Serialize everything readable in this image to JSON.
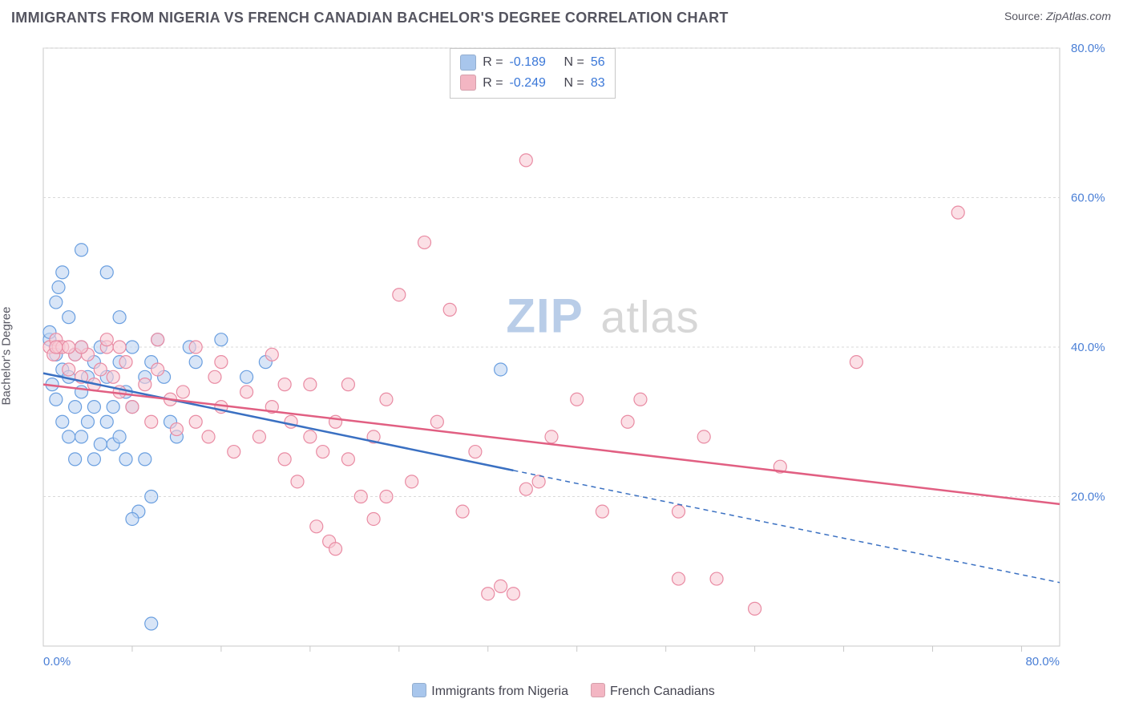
{
  "title": "IMMIGRANTS FROM NIGERIA VS FRENCH CANADIAN BACHELOR'S DEGREE CORRELATION CHART",
  "source_label": "Source: ",
  "source_name": "ZipAtlas.com",
  "watermark_text": "ZIPatlas",
  "ylabel": "Bachelor's Degree",
  "xlim": [
    0,
    80
  ],
  "ylim": [
    0,
    80
  ],
  "ytick_values": [
    20,
    40,
    60,
    80
  ],
  "ytick_labels": [
    "20.0%",
    "40.0%",
    "60.0%",
    "80.0%"
  ],
  "xtick_values": [
    0,
    80
  ],
  "xtick_labels": [
    "0.0%",
    "80.0%"
  ],
  "xtick_minor": [
    7,
    14,
    21,
    28,
    35,
    42,
    49,
    56,
    63,
    70,
    77
  ],
  "grid_color": "#d9d9d9",
  "axis_color": "#c8c8c8",
  "background_color": "#ffffff",
  "stats": [
    {
      "swatch": "#a8c6ec",
      "r_label": "R =",
      "r_value": "-0.189",
      "n_label": "N =",
      "n_value": "56"
    },
    {
      "swatch": "#f3b6c3",
      "r_label": "R =",
      "r_value": "-0.249",
      "n_label": "N =",
      "n_value": "83"
    }
  ],
  "bottom_legend": [
    {
      "swatch": "#a8c6ec",
      "label": "Immigrants from Nigeria"
    },
    {
      "swatch": "#f3b6c3",
      "label": "French Canadians"
    }
  ],
  "series": [
    {
      "name": "Immigrants from Nigeria",
      "fill": "#bed4f1",
      "stroke": "#6a9fe0",
      "marker_radius": 8,
      "points": [
        [
          0.5,
          41
        ],
        [
          0.5,
          42
        ],
        [
          0.7,
          35
        ],
        [
          1,
          46
        ],
        [
          1,
          39
        ],
        [
          1,
          33
        ],
        [
          1.2,
          48
        ],
        [
          1.5,
          50
        ],
        [
          1.5,
          37
        ],
        [
          1.5,
          30
        ],
        [
          2,
          44
        ],
        [
          2,
          36
        ],
        [
          2,
          28
        ],
        [
          2.5,
          39
        ],
        [
          2.5,
          32
        ],
        [
          2.5,
          25
        ],
        [
          3,
          53
        ],
        [
          3,
          40
        ],
        [
          3,
          34
        ],
        [
          3,
          28
        ],
        [
          3.5,
          36
        ],
        [
          3.5,
          30
        ],
        [
          4,
          38
        ],
        [
          4,
          32
        ],
        [
          4,
          25
        ],
        [
          4.5,
          40
        ],
        [
          4.5,
          27
        ],
        [
          5,
          50
        ],
        [
          5,
          36
        ],
        [
          5,
          30
        ],
        [
          5.5,
          32
        ],
        [
          5.5,
          27
        ],
        [
          6,
          44
        ],
        [
          6,
          38
        ],
        [
          6,
          28
        ],
        [
          6.5,
          34
        ],
        [
          6.5,
          25
        ],
        [
          7,
          40
        ],
        [
          7,
          32
        ],
        [
          7.5,
          18
        ],
        [
          8,
          36
        ],
        [
          8,
          25
        ],
        [
          8.5,
          38
        ],
        [
          8.5,
          20
        ],
        [
          9,
          41
        ],
        [
          9.5,
          36
        ],
        [
          10,
          30
        ],
        [
          10.5,
          28
        ],
        [
          11.5,
          40
        ],
        [
          12,
          38
        ],
        [
          14,
          41
        ],
        [
          16,
          36
        ],
        [
          17.5,
          38
        ],
        [
          36,
          37
        ],
        [
          8.5,
          3
        ],
        [
          7,
          17
        ]
      ],
      "trend_solid": {
        "x1": 0,
        "y1": 36.5,
        "x2": 37,
        "y2": 23.5
      },
      "trend_dashed": {
        "x1": 37,
        "y1": 23.5,
        "x2": 80,
        "y2": 8.5
      },
      "trend_color": "#3a70c2",
      "trend_width": 2.5
    },
    {
      "name": "French Canadians",
      "fill": "#f8ccd5",
      "stroke": "#e98ba3",
      "marker_radius": 8,
      "points": [
        [
          0.5,
          40
        ],
        [
          0.8,
          39
        ],
        [
          1,
          41
        ],
        [
          1.2,
          40
        ],
        [
          1.5,
          40
        ],
        [
          2,
          37
        ],
        [
          2.5,
          39
        ],
        [
          3,
          36
        ],
        [
          3.5,
          39
        ],
        [
          4,
          35
        ],
        [
          4.5,
          37
        ],
        [
          5,
          40
        ],
        [
          5.5,
          36
        ],
        [
          6,
          34
        ],
        [
          6.5,
          38
        ],
        [
          7,
          32
        ],
        [
          8,
          35
        ],
        [
          8.5,
          30
        ],
        [
          9,
          37
        ],
        [
          10,
          33
        ],
        [
          10.5,
          29
        ],
        [
          11,
          34
        ],
        [
          12,
          30
        ],
        [
          13,
          28
        ],
        [
          13.5,
          36
        ],
        [
          14,
          32
        ],
        [
          15,
          26
        ],
        [
          16,
          34
        ],
        [
          17,
          28
        ],
        [
          18,
          32
        ],
        [
          19,
          25
        ],
        [
          19.5,
          30
        ],
        [
          20,
          22
        ],
        [
          21,
          28
        ],
        [
          21.5,
          16
        ],
        [
          22,
          26
        ],
        [
          22.5,
          14
        ],
        [
          23,
          30
        ],
        [
          24,
          25
        ],
        [
          25,
          20
        ],
        [
          26,
          28
        ],
        [
          27,
          33
        ],
        [
          28,
          47
        ],
        [
          29,
          22
        ],
        [
          30,
          54
        ],
        [
          31,
          30
        ],
        [
          32,
          45
        ],
        [
          33,
          18
        ],
        [
          34,
          26
        ],
        [
          35,
          7
        ],
        [
          36,
          8
        ],
        [
          37,
          7
        ],
        [
          38,
          65
        ],
        [
          38,
          21
        ],
        [
          39,
          22
        ],
        [
          40,
          28
        ],
        [
          42,
          33
        ],
        [
          44,
          18
        ],
        [
          46,
          30
        ],
        [
          47,
          33
        ],
        [
          50,
          9
        ],
        [
          50,
          18
        ],
        [
          52,
          28
        ],
        [
          53,
          9
        ],
        [
          56,
          5
        ],
        [
          58,
          24
        ],
        [
          64,
          38
        ],
        [
          72,
          58
        ],
        [
          12,
          40
        ],
        [
          14,
          38
        ],
        [
          23,
          13
        ],
        [
          21,
          35
        ],
        [
          19,
          35
        ],
        [
          27,
          20
        ],
        [
          26,
          17
        ],
        [
          9,
          41
        ],
        [
          6,
          40
        ],
        [
          5,
          41
        ],
        [
          3,
          40
        ],
        [
          2,
          40
        ],
        [
          1,
          40
        ],
        [
          18,
          39
        ],
        [
          24,
          35
        ]
      ],
      "trend_solid": {
        "x1": 0,
        "y1": 35,
        "x2": 80,
        "y2": 19
      },
      "trend_color": "#e15f82",
      "trend_width": 2.5
    }
  ]
}
